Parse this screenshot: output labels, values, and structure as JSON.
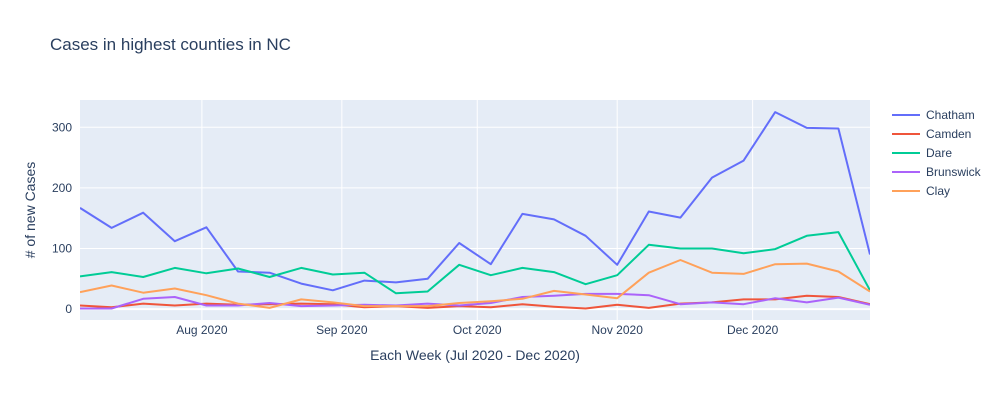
{
  "chart_data": {
    "type": "line",
    "title": "Cases in highest counties in NC",
    "xlabel": "Each Week (Jul 2020 - Dec 2020)",
    "ylabel": "# of new Cases",
    "ylim": [
      -18,
      345
    ],
    "yticks": [
      0,
      100,
      200,
      300
    ],
    "xlim": [
      "2020-07-05",
      "2020-12-27"
    ],
    "xticks": [
      {
        "date": "2020-08-01",
        "label": "Aug 2020"
      },
      {
        "date": "2020-09-01",
        "label": "Sep 2020"
      },
      {
        "date": "2020-10-01",
        "label": "Oct 2020"
      },
      {
        "date": "2020-11-01",
        "label": "Nov 2020"
      },
      {
        "date": "2020-12-01",
        "label": "Dec 2020"
      }
    ],
    "grid": true,
    "legend_position": "top-right",
    "x": [
      "2020-07-05",
      "2020-07-12",
      "2020-07-19",
      "2020-07-26",
      "2020-08-02",
      "2020-08-09",
      "2020-08-16",
      "2020-08-23",
      "2020-08-30",
      "2020-09-06",
      "2020-09-13",
      "2020-09-20",
      "2020-09-27",
      "2020-10-04",
      "2020-10-11",
      "2020-10-18",
      "2020-10-25",
      "2020-11-01",
      "2020-11-08",
      "2020-11-15",
      "2020-11-22",
      "2020-11-29",
      "2020-12-06",
      "2020-12-13",
      "2020-12-20",
      "2020-12-27"
    ],
    "series": [
      {
        "name": "Chatham",
        "color": "#636efa",
        "values": [
          167,
          134,
          159,
          112,
          135,
          62,
          60,
          42,
          31,
          47,
          44,
          50,
          109,
          74,
          157,
          148,
          121,
          73,
          161,
          151,
          217,
          245,
          325,
          299,
          298,
          90
        ]
      },
      {
        "name": "Camden",
        "color": "#ef553b",
        "values": [
          6,
          3,
          9,
          6,
          9,
          7,
          8,
          9,
          8,
          3,
          5,
          2,
          5,
          3,
          8,
          4,
          1,
          7,
          2,
          9,
          11,
          16,
          16,
          22,
          20,
          8
        ]
      },
      {
        "name": "Dare",
        "color": "#00cc96",
        "values": [
          54,
          61,
          53,
          68,
          59,
          67,
          53,
          68,
          57,
          60,
          26,
          29,
          73,
          56,
          68,
          61,
          41,
          56,
          106,
          100,
          100,
          92,
          99,
          121,
          127,
          31
        ]
      },
      {
        "name": "Brunswick",
        "color": "#ab63fa",
        "values": [
          1,
          1,
          17,
          20,
          6,
          6,
          10,
          5,
          6,
          7,
          6,
          9,
          6,
          10,
          20,
          22,
          25,
          25,
          23,
          8,
          11,
          8,
          18,
          11,
          19,
          7
        ]
      },
      {
        "name": "Clay",
        "color": "#ffa15a",
        "values": [
          28,
          39,
          27,
          34,
          23,
          9,
          2,
          16,
          11,
          5,
          5,
          5,
          10,
          13,
          17,
          30,
          24,
          18,
          60,
          81,
          60,
          58,
          74,
          75,
          62,
          29
        ]
      }
    ]
  }
}
